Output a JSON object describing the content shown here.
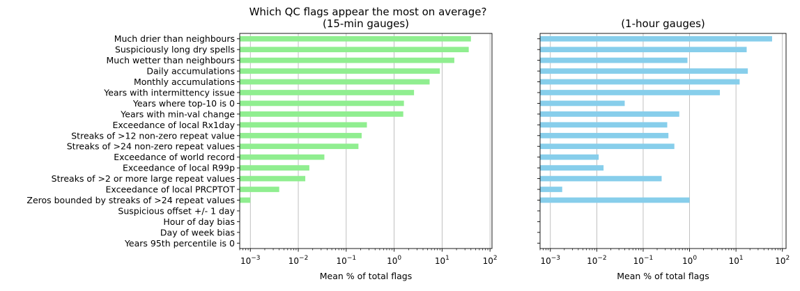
{
  "figure": {
    "title_line1": "Which QC flags appear the most on average?"
  },
  "chart_data": [
    {
      "type": "bar",
      "orientation": "horizontal",
      "title": "(15-min gauges)",
      "xlabel": "Mean % of total flags",
      "xscale": "log",
      "xlim": [
        0.0006,
        110
      ],
      "xticks": [
        0.001,
        0.01,
        0.1,
        1,
        10,
        100
      ],
      "xtick_labels": [
        {
          "base": "10",
          "exp": "−3"
        },
        {
          "base": "10",
          "exp": "−2"
        },
        {
          "base": "10",
          "exp": "−1"
        },
        {
          "base": "10",
          "exp": "0"
        },
        {
          "base": "10",
          "exp": "1"
        },
        {
          "base": "10",
          "exp": "2"
        }
      ],
      "grid": "x",
      "bar_color": "#90EE90",
      "categories": [
        "Much drier than neighbours",
        "Suspiciously long dry spells",
        "Much wetter than neighbours",
        "Daily accumulations",
        "Monthly accumulations",
        "Years with intermittency issue",
        "Years where top-10 is 0",
        "Years with min-val change",
        "Exceedance of local Rx1day",
        "Streaks of >12 non-zero repeat value",
        "Streaks of >24 non-zero repeat values",
        "Exceedance of world record",
        "Exceedance of local R99p",
        "Streaks of >2 or more large repeat values",
        "Exceedance of local PRCPTOT",
        "Zeros bounded by streaks of >24 repeat values",
        "Suspicious offset +/- 1 day",
        "Hour of day bias",
        "Day of week bias",
        "Years 95th percentile is 0"
      ],
      "values": [
        40,
        36,
        18,
        9,
        5.5,
        2.6,
        1.6,
        1.55,
        0.27,
        0.21,
        0.18,
        0.035,
        0.017,
        0.014,
        0.004,
        0.001,
        0,
        0,
        0,
        0
      ]
    },
    {
      "type": "bar",
      "orientation": "horizontal",
      "title": "(1-hour gauges)",
      "xlabel": "Mean % of total flags",
      "xscale": "log",
      "xlim": [
        0.0006,
        120
      ],
      "xticks": [
        0.001,
        0.01,
        0.1,
        1,
        10,
        100
      ],
      "xtick_labels": [
        {
          "base": "10",
          "exp": "−3"
        },
        {
          "base": "10",
          "exp": "−2"
        },
        {
          "base": "10",
          "exp": "−1"
        },
        {
          "base": "10",
          "exp": "0"
        },
        {
          "base": "10",
          "exp": "1"
        },
        {
          "base": "10",
          "exp": "2"
        }
      ],
      "grid": "x",
      "bar_color": "#87CEEB",
      "values": [
        60,
        17,
        0.9,
        18,
        12,
        4.5,
        0.04,
        0.6,
        0.33,
        0.35,
        0.47,
        0.011,
        0.014,
        0.25,
        0.0018,
        1.0,
        0,
        0,
        0,
        0
      ]
    }
  ]
}
